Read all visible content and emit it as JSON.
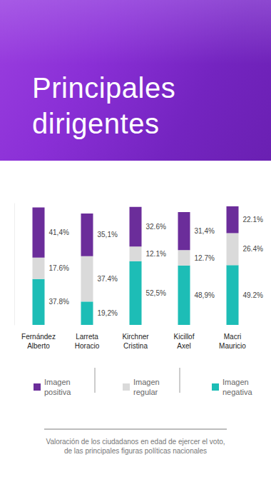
{
  "chart_data": {
    "type": "bar",
    "title": "Principales dirigentes",
    "subtitle": "Valoración de los ciudadanos en edad de ejercer el voto, de las principales figuras políticas nacionales",
    "categories": [
      "Fernández Alberto",
      "Larreta Horacio",
      "Kirchner Cristina",
      "Kicillof Axel",
      "Macri Mauricio"
    ],
    "series": [
      {
        "name": "Imagen positiva",
        "color": "#6b2d9a",
        "values": [
          41.4,
          35.1,
          32.6,
          31.4,
          22.1
        ],
        "value_labels": [
          "41,4%",
          "35,1%",
          "32.6%",
          "31,4%",
          "22.1%"
        ]
      },
      {
        "name": "Imagen regular",
        "color": "#dadada",
        "values": [
          17.6,
          37.4,
          12.1,
          12.7,
          26.4
        ],
        "value_labels": [
          "17.6%",
          "37.4%",
          "12.1%",
          "12.7%",
          "26.4%"
        ]
      },
      {
        "name": "Imagen negativa",
        "color": "#1dbdb6",
        "values": [
          37.8,
          19.2,
          52.5,
          48.9,
          49.2
        ],
        "value_labels": [
          "37.8%",
          "19,2%",
          "52,5%",
          "48,9%",
          "49.2%"
        ]
      }
    ],
    "ylim": [
      0,
      100
    ],
    "stacked": true,
    "data_labels": true,
    "tick_labels": "x",
    "grid": false,
    "legend": "bottom"
  }
}
